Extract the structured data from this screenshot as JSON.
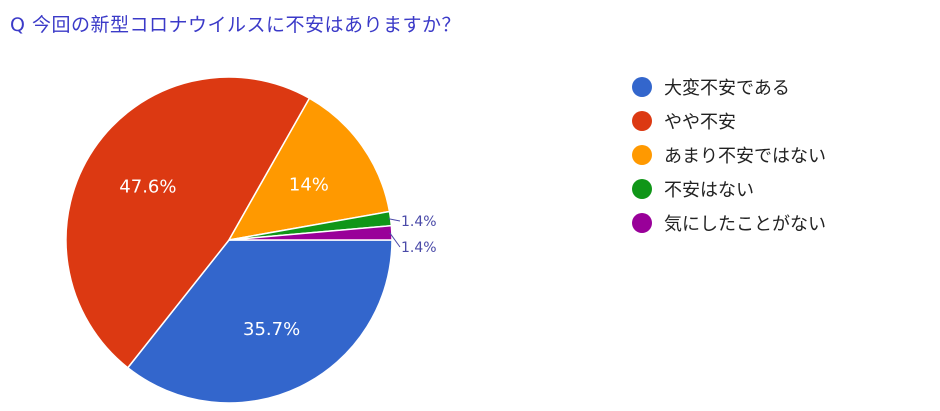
{
  "question": "Q  今回の新型コロナウイルスに不安はありますか？",
  "chart_data": {
    "type": "pie",
    "title": "Q  今回の新型コロナウイルスに不安はありますか？",
    "legend_position": "right",
    "slices": [
      {
        "name": "大変不安である",
        "value": 35.7,
        "label": "35.7%",
        "color": "#3366cc"
      },
      {
        "name": "やや不安",
        "value": 47.6,
        "label": "47.6%",
        "color": "#dc3912"
      },
      {
        "name": "あまり不安ではない",
        "value": 14.0,
        "label": "14%",
        "color": "#ff9900"
      },
      {
        "name": "不安はない",
        "value": 1.4,
        "label": "1.4%",
        "color": "#109618"
      },
      {
        "name": "気にしたことがない",
        "value": 1.4,
        "label": "1.4%",
        "color": "#990099"
      }
    ]
  }
}
